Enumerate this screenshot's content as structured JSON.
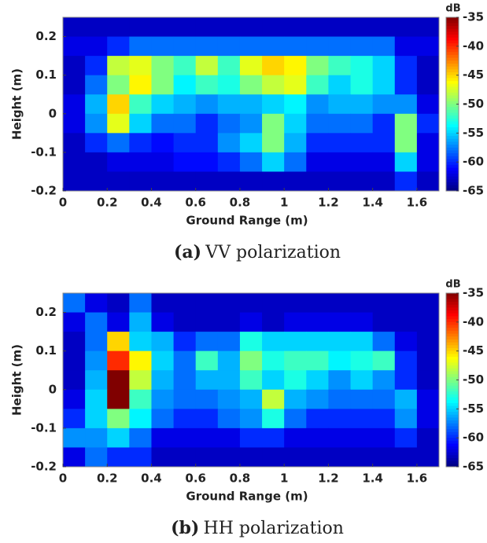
{
  "chart_data": [
    {
      "type": "heatmap",
      "xlabel": "Ground Range (m)",
      "ylabel": "Height (m)",
      "caption": {
        "label": "(a)",
        "text": "VV polarization"
      },
      "xlim": [
        0,
        1.7
      ],
      "ylim": [
        -0.2,
        0.25
      ],
      "xticks": [
        0,
        0.2,
        0.4,
        0.6,
        0.8,
        1,
        1.2,
        1.4,
        1.6
      ],
      "yticks": [
        -0.2,
        -0.1,
        0,
        0.1,
        0.2
      ],
      "x": [
        0.05,
        0.15,
        0.25,
        0.35,
        0.45,
        0.55,
        0.65,
        0.75,
        0.85,
        0.95,
        1.05,
        1.15,
        1.25,
        1.35,
        1.45,
        1.55,
        1.65
      ],
      "y": [
        0.225,
        0.175,
        0.125,
        0.075,
        0.025,
        -0.025,
        -0.075,
        -0.125,
        -0.175
      ],
      "z": [
        [
          -63,
          -63,
          -63,
          -63,
          -63,
          -63,
          -63,
          -63,
          -63,
          -63,
          -63,
          -63,
          -63,
          -63,
          -63,
          -63,
          -63
        ],
        [
          -62,
          -62,
          -60,
          -58,
          -58,
          -58,
          -58,
          -58,
          -58,
          -58,
          -58,
          -58,
          -58,
          -58,
          -58,
          -62,
          -62
        ],
        [
          -63,
          -60,
          -48,
          -47,
          -50,
          -52,
          -48,
          -52,
          -47,
          -45,
          -46,
          -50,
          -52,
          -53,
          -55,
          -60,
          -63
        ],
        [
          -63,
          -58,
          -50,
          -46,
          -50,
          -54,
          -52,
          -53,
          -50,
          -48,
          -47,
          -52,
          -55,
          -53,
          -55,
          -60,
          -63
        ],
        [
          -62,
          -56,
          -45,
          -52,
          -55,
          -56,
          -57,
          -56,
          -56,
          -55,
          -54,
          -57,
          -56,
          -56,
          -57,
          -57,
          -62
        ],
        [
          -62,
          -57,
          -47,
          -55,
          -58,
          -58,
          -60,
          -58,
          -57,
          -50,
          -55,
          -58,
          -58,
          -58,
          -60,
          -50,
          -60
        ],
        [
          -63,
          -60,
          -58,
          -60,
          -61,
          -60,
          -60,
          -57,
          -55,
          -50,
          -56,
          -60,
          -60,
          -60,
          -60,
          -50,
          -62
        ],
        [
          -63,
          -63,
          -62,
          -62,
          -62,
          -61,
          -61,
          -60,
          -58,
          -55,
          -58,
          -62,
          -62,
          -62,
          -62,
          -55,
          -62
        ],
        [
          -63,
          -63,
          -63,
          -63,
          -63,
          -63,
          -63,
          -63,
          -63,
          -63,
          -63,
          -63,
          -63,
          -63,
          -63,
          -60,
          -63
        ]
      ],
      "colorbar": {
        "label": "dB",
        "clim": [
          -65,
          -35
        ],
        "ticks": [
          -35,
          -40,
          -45,
          -50,
          -55,
          -60,
          -65
        ],
        "colormap": "jet"
      }
    },
    {
      "type": "heatmap",
      "xlabel": "Ground Range (m)",
      "ylabel": "Height (m)",
      "caption": {
        "label": "(b)",
        "text": "HH polarization"
      },
      "xlim": [
        0,
        1.7
      ],
      "ylim": [
        -0.2,
        0.25
      ],
      "xticks": [
        0,
        0.2,
        0.4,
        0.6,
        0.8,
        1,
        1.2,
        1.4,
        1.6
      ],
      "yticks": [
        -0.2,
        -0.1,
        0,
        0.1,
        0.2
      ],
      "x": [
        0.05,
        0.15,
        0.25,
        0.35,
        0.45,
        0.55,
        0.65,
        0.75,
        0.85,
        0.95,
        1.05,
        1.15,
        1.25,
        1.35,
        1.45,
        1.55,
        1.65
      ],
      "y": [
        0.225,
        0.175,
        0.125,
        0.075,
        0.025,
        -0.025,
        -0.075,
        -0.125,
        -0.175
      ],
      "z": [
        [
          -58,
          -62,
          -63,
          -58,
          -63,
          -63,
          -63,
          -63,
          -63,
          -63,
          -63,
          -63,
          -63,
          -63,
          -63,
          -63,
          -63
        ],
        [
          -62,
          -58,
          -62,
          -56,
          -62,
          -63,
          -63,
          -63,
          -62,
          -63,
          -62,
          -62,
          -62,
          -62,
          -63,
          -63,
          -63
        ],
        [
          -63,
          -58,
          -45,
          -55,
          -56,
          -60,
          -58,
          -58,
          -53,
          -55,
          -55,
          -55,
          -55,
          -55,
          -58,
          -62,
          -63
        ],
        [
          -63,
          -57,
          -40,
          -46,
          -55,
          -58,
          -52,
          -56,
          -50,
          -53,
          -52,
          -52,
          -54,
          -53,
          -52,
          -60,
          -63
        ],
        [
          -63,
          -56,
          -35,
          -48,
          -56,
          -58,
          -56,
          -56,
          -52,
          -55,
          -53,
          -55,
          -57,
          -55,
          -57,
          -60,
          -63
        ],
        [
          -62,
          -55,
          -35,
          -52,
          -57,
          -58,
          -58,
          -57,
          -56,
          -48,
          -56,
          -57,
          -58,
          -58,
          -58,
          -56,
          -62
        ],
        [
          -60,
          -55,
          -50,
          -54,
          -58,
          -60,
          -60,
          -58,
          -57,
          -53,
          -58,
          -60,
          -60,
          -60,
          -60,
          -57,
          -62
        ],
        [
          -57,
          -57,
          -55,
          -58,
          -62,
          -62,
          -62,
          -62,
          -60,
          -60,
          -62,
          -62,
          -62,
          -62,
          -62,
          -60,
          -63
        ],
        [
          -62,
          -58,
          -60,
          -60,
          -63,
          -63,
          -63,
          -63,
          -63,
          -63,
          -63,
          -63,
          -63,
          -63,
          -63,
          -63,
          -63
        ]
      ],
      "colorbar": {
        "label": "dB",
        "clim": [
          -65,
          -35
        ],
        "ticks": [
          -35,
          -40,
          -45,
          -50,
          -55,
          -60,
          -65
        ],
        "colormap": "jet"
      }
    }
  ]
}
